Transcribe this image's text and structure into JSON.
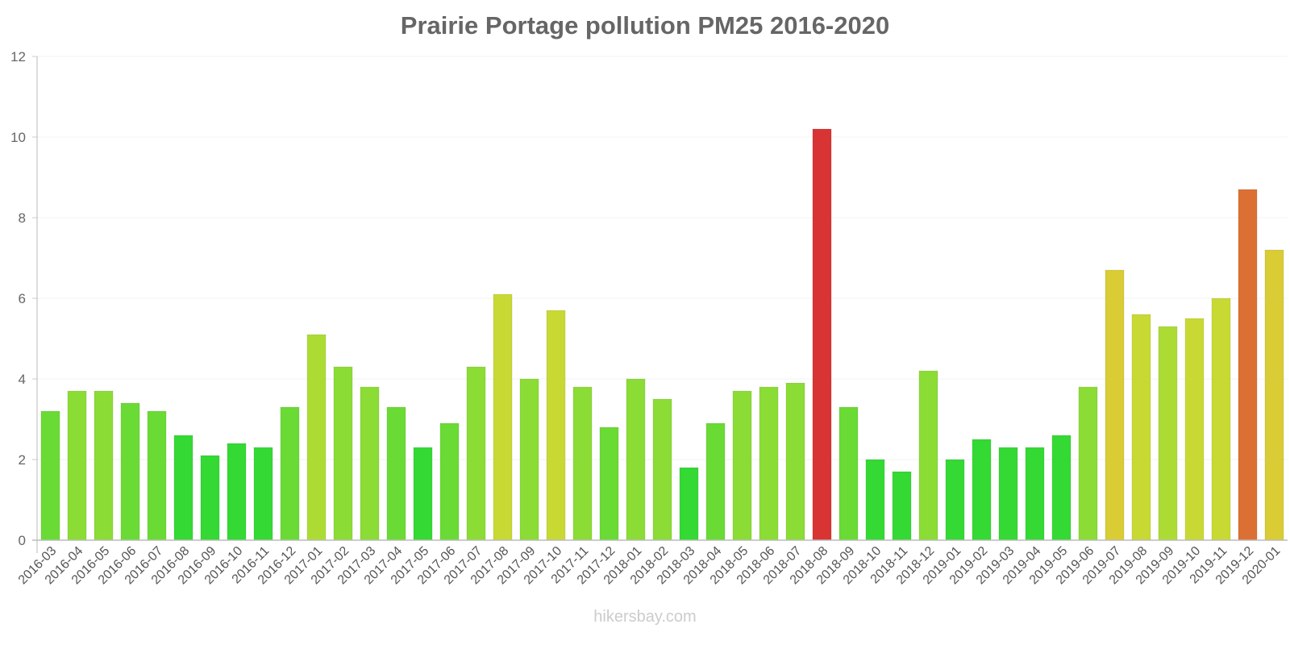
{
  "title": "Prairie Portage pollution PM25 2016-2020",
  "watermark": "hikersbay.com",
  "chart_data": {
    "type": "bar",
    "title": "Prairie Portage pollution PM25 2016-2020",
    "xlabel": "",
    "ylabel": "",
    "ylim": [
      0,
      12
    ],
    "yticks": [
      0,
      2,
      4,
      6,
      8,
      10,
      12
    ],
    "grid": true,
    "legend": null,
    "categories": [
      "2016-03",
      "2016-04",
      "2016-05",
      "2016-06",
      "2016-07",
      "2016-08",
      "2016-09",
      "2016-10",
      "2016-11",
      "2016-12",
      "2017-01",
      "2017-02",
      "2017-03",
      "2017-04",
      "2017-05",
      "2017-06",
      "2017-07",
      "2017-08",
      "2017-09",
      "2017-10",
      "2017-11",
      "2017-12",
      "2018-01",
      "2018-02",
      "2018-03",
      "2018-04",
      "2018-05",
      "2018-06",
      "2018-07",
      "2018-08",
      "2018-09",
      "2018-10",
      "2018-11",
      "2018-12",
      "2019-01",
      "2019-02",
      "2019-03",
      "2019-04",
      "2019-05",
      "2019-06",
      "2019-07",
      "2019-08",
      "2019-09",
      "2019-10",
      "2019-11",
      "2019-12",
      "2020-01"
    ],
    "values": [
      3.2,
      3.7,
      3.7,
      3.4,
      3.2,
      2.6,
      2.1,
      2.4,
      2.3,
      3.3,
      5.1,
      4.3,
      3.8,
      3.3,
      2.3,
      2.9,
      4.3,
      6.1,
      4.0,
      5.7,
      3.8,
      2.8,
      4.0,
      3.5,
      1.8,
      2.9,
      3.7,
      3.8,
      3.9,
      10.2,
      3.3,
      2.0,
      1.7,
      4.2,
      2.0,
      2.5,
      2.3,
      2.3,
      2.6,
      3.8,
      6.7,
      5.6,
      5.3,
      5.5,
      6.0,
      8.7,
      7.2
    ],
    "colors": {
      "very_low": "#34d934",
      "low": "#6adb34",
      "low_mid": "#8bdc34",
      "mid": "#acdc34",
      "mid_high": "#c9d934",
      "moderate": "#d9cc34",
      "high": "#dc7034",
      "very_high": "#d93434"
    }
  }
}
